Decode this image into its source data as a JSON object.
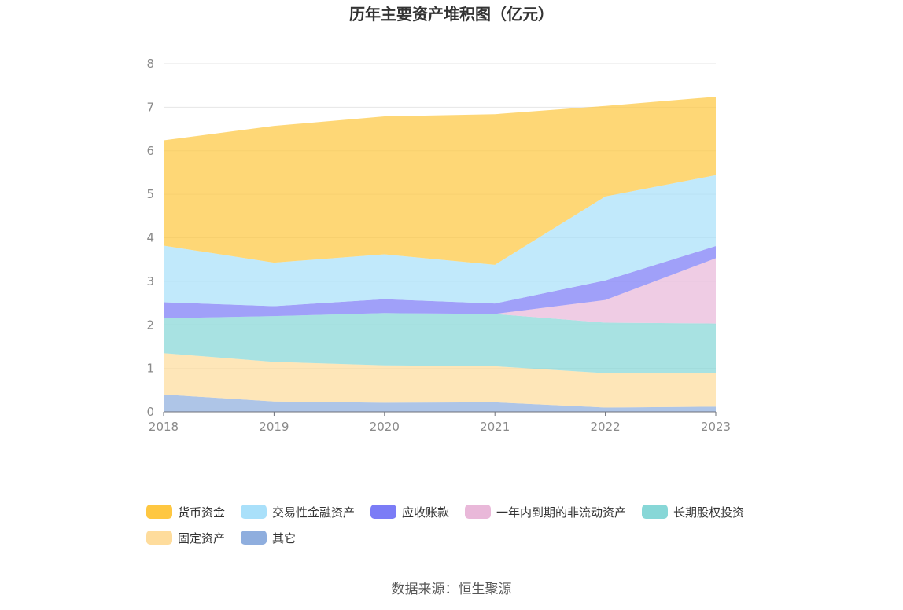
{
  "chart_data": {
    "type": "area",
    "stacked": true,
    "title": "历年主要资产堆积图（亿元）",
    "x": [
      "2018",
      "2019",
      "2020",
      "2021",
      "2022",
      "2023"
    ],
    "ylim": [
      0,
      8
    ],
    "yticks": [
      "0",
      "1",
      "2",
      "3",
      "4",
      "5",
      "6",
      "7",
      "8"
    ],
    "grid": true,
    "legend_position": "bottom",
    "series": [
      {
        "name": "其它",
        "color": "#8faede",
        "values": [
          0.4,
          0.24,
          0.21,
          0.22,
          0.1,
          0.12
        ]
      },
      {
        "name": "固定资产",
        "color": "#fedc9c",
        "values": [
          0.95,
          0.91,
          0.86,
          0.83,
          0.79,
          0.78
        ]
      },
      {
        "name": "长期股权投资",
        "color": "#87d7d7",
        "values": [
          0.8,
          1.05,
          1.2,
          1.2,
          1.16,
          1.13
        ]
      },
      {
        "name": "一年内到期的非流动资产",
        "color": "#e9b8d9",
        "values": [
          0.0,
          0.0,
          0.0,
          0.0,
          0.52,
          1.5
        ]
      },
      {
        "name": "应收账款",
        "color": "#7b7cf6",
        "values": [
          0.37,
          0.23,
          0.32,
          0.24,
          0.45,
          0.28
        ]
      },
      {
        "name": "交易性金融资产",
        "color": "#a9e0fa",
        "values": [
          1.3,
          1.0,
          1.03,
          0.89,
          1.93,
          1.63
        ]
      },
      {
        "name": "货币资金",
        "color": "#fec741",
        "values": [
          2.42,
          3.14,
          3.17,
          3.46,
          2.08,
          1.8
        ]
      }
    ],
    "legend_order": [
      "货币资金",
      "交易性金融资产",
      "应收账款",
      "一年内到期的非流动资产",
      "长期股权投资",
      "固定资产",
      "其它"
    ],
    "source": "数据来源：恒生聚源"
  }
}
